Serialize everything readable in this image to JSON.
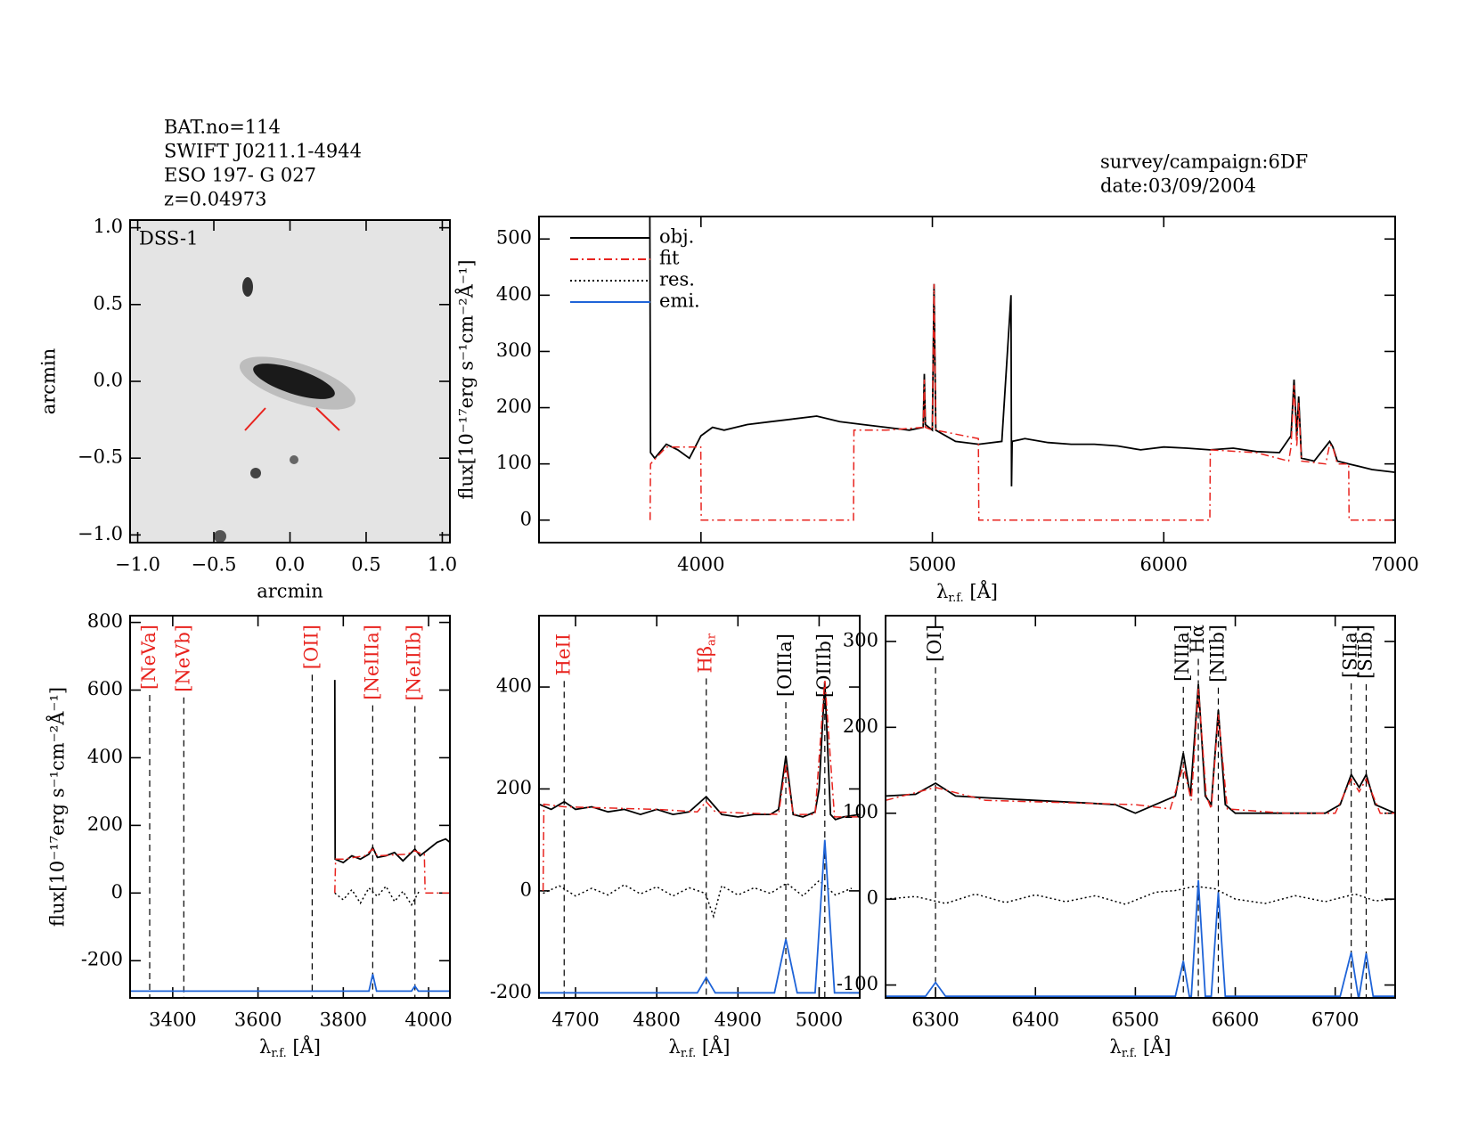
{
  "header": {
    "object_lines": [
      "BAT.no=114",
      "SWIFT J0211.1-4944",
      "ESO 197- G 027",
      "z=0.04973"
    ],
    "survey": "survey/campaign:6DF",
    "date": "date:03/09/2004"
  },
  "chart_data": [
    {
      "type": "image",
      "label": "DSS-1",
      "xlabel": "arcmin",
      "ylabel": "arcmin",
      "xlim": [
        -1.05,
        1.05
      ],
      "ylim": [
        -1.05,
        1.05
      ],
      "xticks": [
        {
          "value": -1,
          "label": "−1.0"
        },
        {
          "value": -0.5,
          "label": "−0.5"
        },
        {
          "value": 0,
          "label": "0.0"
        },
        {
          "value": 0.5,
          "label": "0.5"
        },
        {
          "value": 1,
          "label": "1.0"
        }
      ],
      "yticks": [
        {
          "value": -1,
          "label": "−1.0"
        },
        {
          "value": -0.5,
          "label": "−0.5"
        },
        {
          "value": 0,
          "label": "0.0"
        },
        {
          "value": 0.5,
          "label": "0.5"
        },
        {
          "value": 1,
          "label": "1.0"
        }
      ]
    },
    {
      "type": "line",
      "xlabel": {
        "symbol": "λ",
        "subscript": "r.f.",
        "unit": " [Å]"
      },
      "ylabel": "flux[10⁻¹⁷erg s⁻¹cm⁻²Å⁻¹]",
      "xlim": [
        3300,
        7000
      ],
      "ylim": [
        -40,
        540
      ],
      "xticks": [
        4000,
        5000,
        6000,
        7000
      ],
      "yticks": [
        0,
        100,
        200,
        300,
        400,
        500
      ],
      "legend": [
        {
          "name": "obj.",
          "color": "#000000",
          "style": "solid"
        },
        {
          "name": "fit",
          "color": "#e8231e",
          "style": "dashdot"
        },
        {
          "name": "res.",
          "color": "#000000",
          "style": "dotted"
        },
        {
          "name": "emi.",
          "color": "#1f64d8",
          "style": "solid"
        }
      ],
      "series": [
        {
          "name": "obj.",
          "color": "#000000",
          "style": "solid",
          "x": [
            3779,
            3782,
            3800,
            3850,
            3900,
            3950,
            4000,
            4050,
            4100,
            4200,
            4300,
            4400,
            4500,
            4600,
            4700,
            4800,
            4900,
            4960,
            4965,
            4970,
            5000,
            5007,
            5015,
            5100,
            5200,
            5300,
            5340,
            5342,
            5345,
            5400,
            5500,
            5600,
            5700,
            5800,
            5900,
            6000,
            6100,
            6200,
            6300,
            6400,
            6500,
            6550,
            6563,
            6575,
            6583,
            6595,
            6650,
            6717,
            6731,
            6750,
            6800,
            6900,
            7000
          ],
          "values": [
            540,
            120,
            110,
            135,
            125,
            110,
            150,
            165,
            160,
            170,
            175,
            180,
            185,
            175,
            170,
            165,
            160,
            165,
            260,
            170,
            160,
            420,
            160,
            140,
            135,
            140,
            400,
            60,
            140,
            145,
            138,
            135,
            135,
            132,
            125,
            130,
            128,
            125,
            128,
            122,
            120,
            150,
            250,
            150,
            220,
            110,
            105,
            140,
            130,
            105,
            100,
            90,
            85
          ]
        },
        {
          "name": "fit",
          "color": "#e8231e",
          "style": "dashdot",
          "x": [
            3780,
            3782,
            3850,
            3950,
            3999,
            4001,
            4659,
            4661,
            4800,
            4960,
            4965,
            4970,
            5000,
            5007,
            5015,
            5199,
            5201,
            6199,
            6201,
            6400,
            6540,
            6550,
            6563,
            6575,
            6583,
            6595,
            6700,
            6717,
            6731,
            6750,
            6799,
            6801,
            7000
          ],
          "values": [
            0,
            100,
            130,
            130,
            130,
            0,
            0,
            160,
            160,
            165,
            250,
            165,
            160,
            420,
            160,
            145,
            0,
            0,
            125,
            120,
            105,
            130,
            240,
            130,
            210,
            105,
            100,
            135,
            130,
            100,
            100,
            0,
            0
          ]
        }
      ]
    },
    {
      "type": "line",
      "xlabel": {
        "symbol": "λ",
        "subscript": "r.f.",
        "unit": " [Å]"
      },
      "ylabel": "flux[10⁻¹⁷erg s⁻¹cm⁻²Å⁻¹]",
      "xlim": [
        3300,
        4050
      ],
      "ylim": [
        -310,
        820
      ],
      "xticks": [
        3400,
        3600,
        3800,
        4000
      ],
      "yticks": [
        -200,
        0,
        200,
        400,
        600,
        800
      ],
      "lines": [
        {
          "name": "[NeVa]",
          "x": 3346,
          "color": "#e8231e"
        },
        {
          "name": "[NeVb]",
          "x": 3426,
          "color": "#e8231e"
        },
        {
          "name": "[OII]",
          "x": 3727,
          "color": "#e8231e"
        },
        {
          "name": "[NeIIIa]",
          "x": 3869,
          "color": "#e8231e"
        },
        {
          "name": "[NeIIIb]",
          "x": 3968,
          "color": "#e8231e"
        }
      ],
      "series": [
        {
          "name": "obj.",
          "color": "#000000",
          "style": "solid",
          "x": [
            3780,
            3781,
            3800,
            3820,
            3840,
            3860,
            3869,
            3880,
            3900,
            3920,
            3940,
            3960,
            3968,
            3980,
            4000,
            4020,
            4040,
            4050
          ],
          "values": [
            630,
            100,
            90,
            110,
            100,
            115,
            135,
            105,
            110,
            120,
            95,
            120,
            130,
            110,
            130,
            150,
            160,
            150
          ]
        },
        {
          "name": "fit",
          "color": "#e8231e",
          "style": "dashdot",
          "x": [
            3780,
            3782,
            3800,
            3850,
            3869,
            3880,
            3950,
            3968,
            3985,
            3990,
            3992,
            4050
          ],
          "values": [
            0,
            100,
            100,
            110,
            130,
            110,
            115,
            125,
            115,
            115,
            0,
            0
          ]
        },
        {
          "name": "res.",
          "color": "#000000",
          "style": "dotted",
          "x": [
            3780,
            3800,
            3820,
            3840,
            3860,
            3880,
            3900,
            3920,
            3940,
            3960,
            3980
          ],
          "values": [
            0,
            -20,
            10,
            -30,
            15,
            -10,
            20,
            -25,
            5,
            -35,
            10
          ]
        },
        {
          "name": "emi.",
          "color": "#1f64d8",
          "style": "solid",
          "x": [
            3300,
            3860,
            3869,
            3878,
            3960,
            3968,
            3976,
            4050
          ],
          "values": [
            -290,
            -290,
            -240,
            -290,
            -290,
            -275,
            -290,
            -290
          ]
        }
      ]
    },
    {
      "type": "line",
      "xlabel": {
        "symbol": "λ",
        "subscript": "r.f.",
        "unit": " [Å]"
      },
      "xlim": [
        4655,
        5050
      ],
      "ylim": [
        -210,
        540
      ],
      "xticks": [
        4700,
        4800,
        4900,
        5000
      ],
      "yticks": [
        -200,
        0,
        200,
        400
      ],
      "lines": [
        {
          "name": "HeII",
          "x": 4686,
          "color": "#e8231e"
        },
        {
          "name": "Hβ",
          "sub": "ar",
          "x": 4861,
          "color": "#e8231e"
        },
        {
          "name": "[OIIIa]",
          "x": 4959,
          "color": "#000000"
        },
        {
          "name": "[OIIIb]",
          "x": 5007,
          "color": "#000000"
        }
      ],
      "series": [
        {
          "name": "obj.",
          "color": "#000000",
          "style": "solid",
          "x": [
            4655,
            4670,
            4686,
            4700,
            4720,
            4740,
            4760,
            4780,
            4800,
            4820,
            4840,
            4861,
            4880,
            4900,
            4920,
            4940,
            4950,
            4959,
            4968,
            4980,
            4995,
            5000,
            5007,
            5014,
            5020,
            5030,
            5050
          ],
          "values": [
            170,
            160,
            175,
            160,
            165,
            155,
            160,
            150,
            160,
            150,
            155,
            185,
            150,
            145,
            150,
            150,
            160,
            265,
            150,
            145,
            155,
            200,
            410,
            150,
            140,
            145,
            150
          ]
        },
        {
          "name": "fit",
          "color": "#e8231e",
          "style": "dashdot",
          "x": [
            4660,
            4661,
            4686,
            4800,
            4850,
            4861,
            4872,
            4950,
            4959,
            4968,
            4995,
            5007,
            5019,
            5050
          ],
          "values": [
            0,
            170,
            165,
            160,
            155,
            175,
            155,
            150,
            250,
            150,
            150,
            415,
            145,
            145
          ]
        },
        {
          "name": "res.",
          "color": "#000000",
          "style": "dotted",
          "x": [
            4660,
            4680,
            4700,
            4720,
            4740,
            4760,
            4780,
            4800,
            4820,
            4840,
            4860,
            4870,
            4880,
            4900,
            4920,
            4940,
            4960,
            4980,
            5000,
            5020,
            5040
          ],
          "values": [
            -5,
            10,
            -10,
            5,
            -8,
            12,
            -6,
            8,
            -10,
            6,
            -5,
            -50,
            10,
            -8,
            6,
            -5,
            15,
            -10,
            20,
            -8,
            5
          ]
        },
        {
          "name": "emi.",
          "color": "#1f64d8",
          "style": "solid",
          "x": [
            4655,
            4850,
            4861,
            4872,
            4945,
            4959,
            4973,
            4995,
            5007,
            5019,
            5050
          ],
          "values": [
            -200,
            -200,
            -170,
            -200,
            -200,
            -95,
            -200,
            -200,
            100,
            -200,
            -200
          ]
        }
      ]
    },
    {
      "type": "line",
      "xlabel": {
        "symbol": "λ",
        "subscript": "r.f.",
        "unit": " [Å]"
      },
      "xlim": [
        6250,
        6760
      ],
      "ylim": [
        -115,
        330
      ],
      "xticks": [
        6300,
        6400,
        6500,
        6600,
        6700
      ],
      "yticks": [
        -100,
        0,
        100,
        200,
        300
      ],
      "lines": [
        {
          "name": "[OI]",
          "x": 6300,
          "color": "#000000"
        },
        {
          "name": "[NIIa]",
          "x": 6548,
          "color": "#000000"
        },
        {
          "name": "Hα",
          "x": 6563,
          "color": "#000000"
        },
        {
          "name": "[NIIb]",
          "x": 6583,
          "color": "#000000"
        },
        {
          "name": "[SIIa]",
          "x": 6716,
          "color": "#000000"
        },
        {
          "name": "[SIIb]",
          "x": 6731,
          "color": "#000000"
        }
      ],
      "series": [
        {
          "name": "obj.",
          "color": "#000000",
          "style": "solid",
          "x": [
            6250,
            6280,
            6300,
            6320,
            6350,
            6400,
            6450,
            6480,
            6500,
            6520,
            6540,
            6548,
            6555,
            6563,
            6570,
            6576,
            6583,
            6590,
            6600,
            6650,
            6690,
            6705,
            6716,
            6724,
            6731,
            6740,
            6760
          ],
          "values": [
            120,
            122,
            135,
            120,
            118,
            115,
            112,
            110,
            100,
            110,
            120,
            170,
            120,
            250,
            120,
            110,
            220,
            110,
            100,
            100,
            100,
            110,
            145,
            130,
            145,
            110,
            100
          ]
        },
        {
          "name": "fit",
          "color": "#e8231e",
          "style": "dashdot",
          "x": [
            6250,
            6300,
            6350,
            6500,
            6535,
            6548,
            6556,
            6563,
            6571,
            6576,
            6583,
            6592,
            6650,
            6700,
            6716,
            6724,
            6731,
            6745,
            6760
          ],
          "values": [
            115,
            130,
            115,
            110,
            105,
            155,
            115,
            245,
            120,
            105,
            215,
            105,
            100,
            100,
            140,
            125,
            140,
            100,
            100
          ]
        },
        {
          "name": "res.",
          "color": "#000000",
          "style": "dotted",
          "x": [
            6250,
            6280,
            6310,
            6340,
            6370,
            6400,
            6430,
            6460,
            6490,
            6520,
            6540,
            6560,
            6580,
            6600,
            6630,
            6660,
            6690,
            6720,
            6740,
            6760
          ],
          "values": [
            0,
            3,
            -5,
            6,
            -4,
            5,
            -3,
            4,
            -6,
            8,
            10,
            15,
            12,
            0,
            -5,
            4,
            -3,
            6,
            -2,
            0
          ]
        },
        {
          "name": "emi.",
          "color": "#1f64d8",
          "style": "solid",
          "x": [
            6250,
            6290,
            6300,
            6310,
            6540,
            6548,
            6554,
            6556,
            6563,
            6570,
            6576,
            6583,
            6590,
            6705,
            6716,
            6723,
            6724,
            6731,
            6738,
            6760
          ],
          "values": [
            -113,
            -113,
            -97,
            -113,
            -113,
            -72,
            -113,
            -113,
            22,
            -113,
            -113,
            8,
            -113,
            -113,
            -62,
            -113,
            -113,
            -63,
            -113,
            -113
          ]
        }
      ]
    }
  ]
}
